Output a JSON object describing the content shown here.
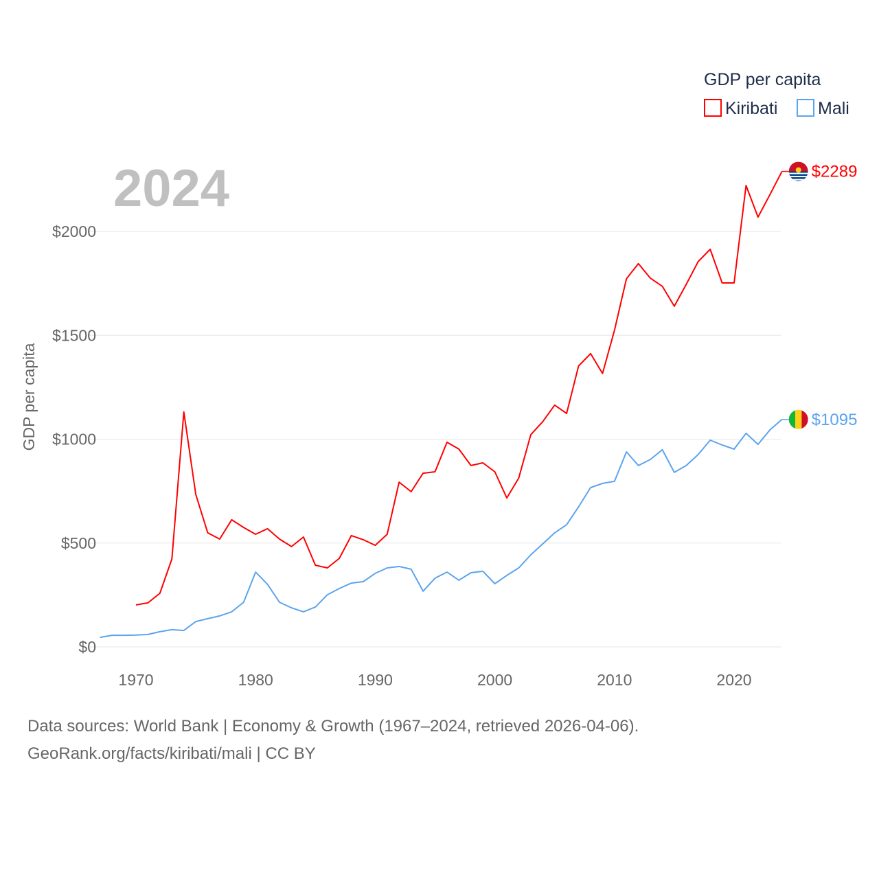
{
  "chart_data": {
    "type": "line",
    "title": "",
    "xlabel": "",
    "ylabel": "GDP per capita",
    "xlim": [
      1967,
      2024
    ],
    "ylim": [
      0,
      2000
    ],
    "yticks": [
      0,
      500,
      1000,
      1500,
      2000
    ],
    "ytick_labels": [
      "$0",
      "$500",
      "$1000",
      "$1500",
      "$2000"
    ],
    "xticks": [
      1970,
      1980,
      1990,
      2000,
      2010,
      2020
    ],
    "xtick_labels": [
      "1970",
      "1980",
      "1990",
      "2000",
      "2010",
      "2020"
    ],
    "grid": true,
    "year_label": "2024",
    "legend": {
      "title": "GDP per capita",
      "placement": "top-right"
    },
    "series": [
      {
        "name": "Kiribati",
        "color": "#ff0000",
        "end_label": "$2289",
        "x_start": 1970,
        "values": [
          202,
          212,
          258,
          423,
          1131,
          734,
          549,
          519,
          612,
          575,
          542,
          569,
          519,
          483,
          529,
          393,
          380,
          426,
          536,
          516,
          489,
          542,
          793,
          747,
          836,
          843,
          985,
          952,
          873,
          886,
          843,
          717,
          813,
          1021,
          1084,
          1164,
          1124,
          1352,
          1412,
          1316,
          1524,
          1772,
          1845,
          1775,
          1736,
          1640,
          1745,
          1855,
          1914,
          1752,
          1752,
          2221,
          2069,
          2178,
          2289
        ]
      },
      {
        "name": "Mali",
        "color": "#5ba4ee",
        "end_label": "$1095",
        "x_start": 1967,
        "values": [
          46,
          56,
          56,
          57,
          60,
          73,
          83,
          79,
          122,
          136,
          149,
          169,
          215,
          360,
          301,
          215,
          188,
          169,
          192,
          251,
          281,
          307,
          314,
          354,
          380,
          387,
          374,
          268,
          331,
          360,
          321,
          357,
          364,
          304,
          344,
          380,
          443,
          496,
          549,
          588,
          674,
          767,
          787,
          797,
          939,
          873,
          902,
          949,
          840,
          873,
          926,
          995,
          972,
          952,
          1028,
          975,
          1045,
          1095
        ]
      }
    ]
  },
  "footer": {
    "line1": "Data sources: World Bank | Economy & Growth (1967–2024, retrieved 2026-04-06).",
    "line2": "GeoRank.org/facts/kiribati/mali | CC BY"
  }
}
